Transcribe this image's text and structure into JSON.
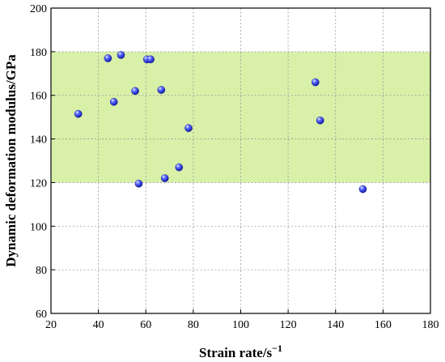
{
  "chart_data": {
    "type": "scatter",
    "title": "",
    "xlabel": "Strain rate/s",
    "xlabel_sup": "−1",
    "ylabel": "Dynamic deformation modulus/GPa",
    "xlim": [
      20,
      180
    ],
    "ylim": [
      60,
      200
    ],
    "x_ticks": [
      20,
      40,
      60,
      80,
      100,
      120,
      140,
      160,
      180
    ],
    "y_ticks": [
      60,
      80,
      100,
      120,
      140,
      160,
      180,
      200
    ],
    "grid": true,
    "band": {
      "y_from": 120,
      "y_to": 180,
      "color": "#d8f0a8"
    },
    "marker_color": "#1f2fe6",
    "points": [
      {
        "x": 31.5,
        "y": 151.5
      },
      {
        "x": 44,
        "y": 177
      },
      {
        "x": 46.5,
        "y": 157
      },
      {
        "x": 49.5,
        "y": 178.5
      },
      {
        "x": 55.5,
        "y": 162
      },
      {
        "x": 57,
        "y": 119.5
      },
      {
        "x": 60.5,
        "y": 176.5
      },
      {
        "x": 62,
        "y": 176.5
      },
      {
        "x": 66.5,
        "y": 162.5
      },
      {
        "x": 68,
        "y": 122
      },
      {
        "x": 74,
        "y": 127
      },
      {
        "x": 78,
        "y": 145
      },
      {
        "x": 131.5,
        "y": 166
      },
      {
        "x": 133.5,
        "y": 148.5
      },
      {
        "x": 151.5,
        "y": 117
      }
    ]
  }
}
